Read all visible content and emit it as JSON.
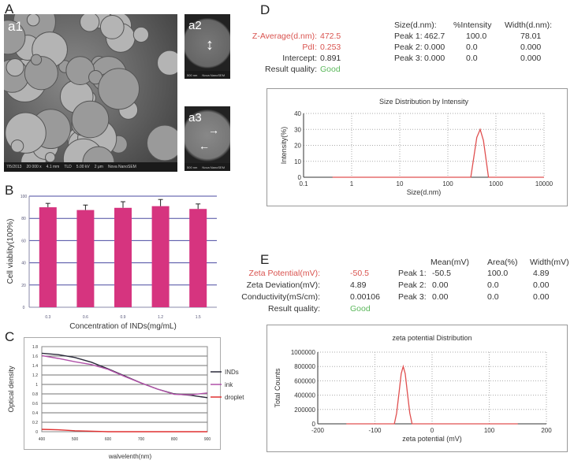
{
  "panels": {
    "a": "A",
    "b": "B",
    "c": "C",
    "d": "D",
    "e": "E"
  },
  "sem": {
    "a1": {
      "tag": "a1",
      "date": "7/5/2013",
      "time": "10:42:44 AM",
      "mag_label": "mag",
      "mag": "20 000 x",
      "wd_label": "WD",
      "wd": "4.1 mm",
      "det_label": "det",
      "det": "TLD",
      "hv_label": "HV",
      "hv": "5.00 kV",
      "scale": "2 μm",
      "instrument": "Nova NanoSEM"
    },
    "a2": {
      "tag": "a2",
      "scale": "500 nm",
      "instrument": "Nova NanoSEM"
    },
    "a3": {
      "tag": "a3",
      "scale": "500 nm",
      "instrument": "Nova NanoSEM"
    }
  },
  "dls": {
    "z_avg_label": "Z-Average(d.nm):",
    "z_avg": "472.5",
    "pdi_label": "PdI:",
    "pdi": "0.253",
    "intercept_label": "Intercept:",
    "intercept": "0.891",
    "quality_label": "Result quality:",
    "quality": "Good",
    "headers": [
      "Size(d.nm):",
      "%Intensity",
      "Width(d.nm):"
    ],
    "peaks": [
      {
        "label": "Peak 1:",
        "size": "462.7",
        "pct": "100.0",
        "width": "78.01"
      },
      {
        "label": "Peak 2:",
        "size": "0.000",
        "pct": "0.0",
        "width": "0.000"
      },
      {
        "label": "Peak 3:",
        "size": "0.000",
        "pct": "0.0",
        "width": "0.000"
      }
    ]
  },
  "zeta": {
    "zp_label": "Zeta Potential(mV):",
    "zp": "-50.5",
    "zd_label": "Zeta Deviation(mV):",
    "zd": "4.89",
    "cond_label": "Conductivity(mS/cm):",
    "cond": "0.00106",
    "quality_label": "Result quality:",
    "quality": "Good",
    "headers": [
      "Mean(mV)",
      "Area(%)",
      "Width(mV)"
    ],
    "peaks": [
      {
        "label": "Peak 1:",
        "mean": "-50.5",
        "area": "100.0",
        "width": "4.89"
      },
      {
        "label": "Peak 2:",
        "mean": "0.00",
        "area": "0.0",
        "width": "0.00"
      },
      {
        "label": "Peak 3:",
        "mean": "0.00",
        "area": "0.0",
        "width": "0.00"
      }
    ]
  },
  "chart_data": [
    {
      "id": "B",
      "type": "bar",
      "categories": [
        "0.3",
        "0.6",
        "0.9",
        "1.2",
        "1.5"
      ],
      "values": [
        90,
        87.5,
        89.5,
        91,
        88.5
      ],
      "errors": [
        3.5,
        4.5,
        5.5,
        6,
        4.5
      ],
      "xlabel": "Concentration of INDs(mg/mL)",
      "ylabel": "Cell viablity(100%)",
      "ylim": [
        0,
        100
      ],
      "yticks": [
        0,
        20,
        40,
        60,
        80,
        100
      ],
      "grid": true,
      "color": "#d6347f",
      "gridcolor": "#4a4aa0"
    },
    {
      "id": "C",
      "type": "line",
      "xlabel": "walvelenth(nm)",
      "ylabel": "Optical density",
      "xlim": [
        400,
        900
      ],
      "ylim": [
        0,
        1.8
      ],
      "xticks": [
        400,
        500,
        600,
        700,
        800,
        900
      ],
      "yticks": [
        "0",
        "0.2",
        "0.4",
        "0.6",
        "0.8",
        "1",
        "1.2",
        "1.4",
        "1.6",
        "1.8"
      ],
      "grid": true,
      "legend": "right",
      "series": [
        {
          "name": "INDs",
          "color": "#2a2a3a",
          "x": [
            400,
            450,
            500,
            550,
            600,
            650,
            700,
            750,
            800,
            850,
            900
          ],
          "y": [
            1.66,
            1.63,
            1.57,
            1.47,
            1.33,
            1.18,
            1.03,
            0.9,
            0.8,
            0.77,
            0.72
          ]
        },
        {
          "name": "ink",
          "color": "#b050a8",
          "x": [
            400,
            450,
            500,
            550,
            600,
            650,
            700,
            750,
            800,
            850,
            900
          ],
          "y": [
            1.61,
            1.55,
            1.48,
            1.42,
            1.32,
            1.17,
            1.03,
            0.9,
            0.79,
            0.78,
            0.82
          ]
        },
        {
          "name": "droplet",
          "color": "#e03030",
          "x": [
            400,
            450,
            500,
            600,
            700,
            800,
            900
          ],
          "y": [
            0.05,
            0.04,
            0.02,
            0.0,
            0.0,
            0.0,
            0.0
          ]
        }
      ]
    },
    {
      "id": "D",
      "type": "line",
      "title": "Size Distribution by Intensity",
      "xlabel": "Size(d.nm)",
      "ylabel": "Intensity(%)",
      "xscale": "log",
      "xlim": [
        0.1,
        10000
      ],
      "ylim": [
        0,
        40
      ],
      "xticks": [
        "0.1",
        "1",
        "10",
        "100",
        "1000",
        "10000"
      ],
      "yticks": [
        "0",
        "10",
        "20",
        "30",
        "40"
      ],
      "grid": true,
      "color": "#e05050",
      "x": [
        0.4,
        300,
        400,
        470,
        550,
        700,
        10000
      ],
      "y": [
        0,
        0,
        25,
        30,
        23,
        0,
        0
      ]
    },
    {
      "id": "E",
      "type": "line",
      "title": "zeta potential Distribution",
      "xlabel": "zeta potential (mV)",
      "ylabel": "Total Counts",
      "xlim": [
        -200,
        200
      ],
      "ylim": [
        0,
        1000000
      ],
      "xticks": [
        "-200",
        "-100",
        "0",
        "100",
        "200"
      ],
      "yticks": [
        "0",
        "200000",
        "400000",
        "600000",
        "800000",
        "1000000"
      ],
      "grid": true,
      "color": "#e05050",
      "x": [
        -150,
        -66,
        -62,
        -58,
        -54,
        -50.5,
        -47,
        -43,
        -39,
        -35,
        150
      ],
      "y": [
        0,
        0,
        150000,
        420000,
        700000,
        800000,
        700000,
        420000,
        150000,
        0,
        0
      ]
    }
  ]
}
